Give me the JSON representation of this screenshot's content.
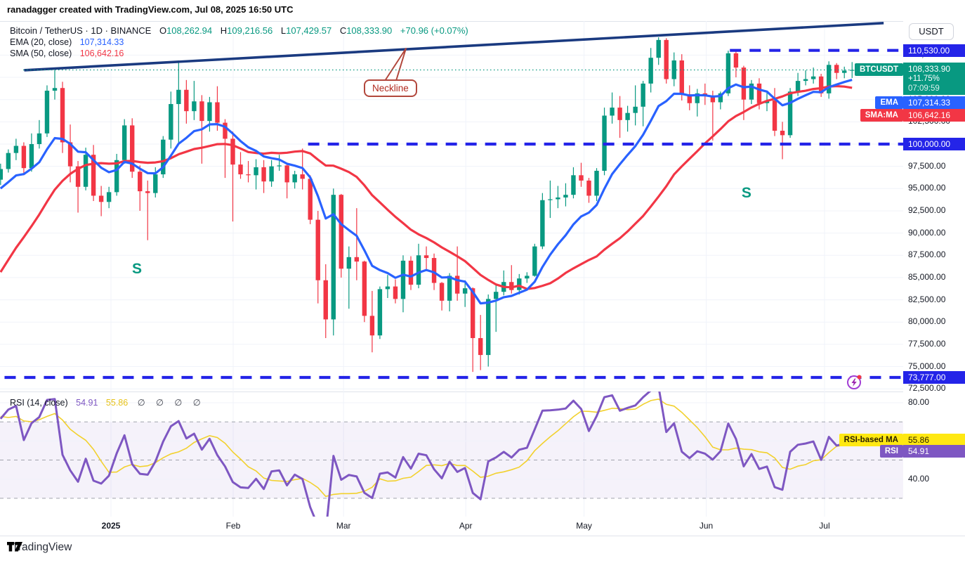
{
  "header": {
    "title": "ranadagger created with TradingView.com, Jul 08, 2025 16:50 UTC"
  },
  "legend": {
    "symbol": "Bitcoin / TetherUS · 1D · BINANCE",
    "o_label": "O",
    "o": "108,262.94",
    "h_label": "H",
    "h": "109,216.56",
    "l_label": "L",
    "l": "107,429.57",
    "c_label": "C",
    "c": "108,333.90",
    "change": "+70.96 (+0.07%)",
    "ema_label": "EMA (20, close)",
    "ema_value": "107,314.33",
    "sma_label": "SMA (50, close)",
    "sma_value": "106,642.16"
  },
  "rsi_legend": {
    "label": "RSI (14, close)",
    "value": "54.91",
    "ma_value": "55.86",
    "empties": "∅ ∅ ∅ ∅"
  },
  "axis": {
    "currency": "USDT",
    "level_top": "110,530.00",
    "level_mid": "100,000.00",
    "level_low": "73,777.00",
    "symbol_badge": {
      "label": "BTCUSDT",
      "price": "108,333.90",
      "change_pct": "+11.75%",
      "countdown": "07:09:59"
    },
    "ema_badge": {
      "label": "EMA",
      "value": "107,314.33"
    },
    "sma_badge": {
      "label": "SMA:MA",
      "value": "106,642.16"
    },
    "rsi_ma_badge": {
      "label": "RSI-based MA",
      "value": "55.86"
    },
    "rsi_badge": {
      "label": "RSI",
      "value": "54.91"
    }
  },
  "annotations": {
    "neckline_label": "Neckline",
    "s_label": "S"
  },
  "footer": {
    "brand": "TradingView"
  },
  "colors": {
    "up": "#089981",
    "down": "#f23645",
    "ema": "#2962ff",
    "sma": "#f23645",
    "level_blue": "#2424e8",
    "trendline": "#1a3a80",
    "last_price": "#089981",
    "rsi": "#7e57c2",
    "rsi_ma": "#f2d12e",
    "rsi_band": "rgba(126,87,194,0.08)",
    "annotation_red": "#b2473c",
    "s_teal": "#089981",
    "grid": "#f0f3fa",
    "band_dash": "#9598a1"
  },
  "chart_data": {
    "type": "candlestick",
    "title": "Bitcoin / TetherUS · 1D · BINANCE",
    "symbol": "BTCUSDT",
    "exchange": "BINANCE",
    "interval": "1D",
    "last": {
      "open": 108262.94,
      "high": 109216.56,
      "low": 107429.57,
      "close": 108333.9,
      "change": "+70.96 (+0.07%)"
    },
    "last_price": 108333.9,
    "indicators": {
      "ema20": 107314.33,
      "sma50": 106642.16,
      "rsi14": 54.91,
      "rsi_based_ma": 55.86
    },
    "total_days": 216,
    "months": [
      {
        "label": "2025",
        "day": 28,
        "bold": true
      },
      {
        "label": "Feb",
        "day": 59
      },
      {
        "label": "Mar",
        "day": 87
      },
      {
        "label": "Apr",
        "day": 118
      },
      {
        "label": "May",
        "day": 148
      },
      {
        "label": "Jun",
        "day": 179
      },
      {
        "label": "Jul",
        "day": 209
      }
    ],
    "price_axis_ticks": [
      110000,
      107500,
      105000,
      102500,
      100000,
      97500,
      95000,
      92500,
      90000,
      87500,
      85000,
      82500,
      80000,
      77500,
      75000,
      72500
    ],
    "rsi_axis_ticks": [
      80,
      60,
      40
    ],
    "levels": [
      {
        "price": 110530,
        "from_day": 185,
        "style": "dashed"
      },
      {
        "price": 100000,
        "from_day": 78,
        "style": "dashed"
      },
      {
        "price": 73777,
        "from_day": 1,
        "style": "dashed",
        "alert": true,
        "alert_day": 216.5
      }
    ],
    "neckline": {
      "label": "Neckline",
      "from": {
        "day": 6,
        "price": 108300
      },
      "to": {
        "day": 224,
        "price": 113600
      }
    },
    "s_marks": [
      {
        "day": 34.6,
        "price": 85780
      },
      {
        "day": 189.2,
        "price": 94300
      }
    ],
    "ema": {
      "period_bars": 10
    },
    "sma": {
      "period_bars": 25
    },
    "rsi": {
      "period_bars": 7,
      "ma_period_bars": 7,
      "value": 54.91,
      "ma_value": 55.86,
      "upper": 70,
      "lower": 30,
      "middle": 50
    },
    "indicator_warmup_closes": [
      63000,
      64500,
      66000,
      67500,
      69000,
      68500,
      70000,
      72500,
      75500,
      78000,
      81000,
      88000,
      90500,
      92000,
      96000,
      97500,
      95500,
      96500,
      98000,
      96500,
      95500,
      97000,
      96200,
      95100,
      96400
    ],
    "candles": [
      [
        96000,
        97800,
        95400,
        97200
      ],
      [
        97200,
        99400,
        96800,
        99000
      ],
      [
        99000,
        100600,
        98200,
        99800
      ],
      [
        99800,
        100200,
        96500,
        97300
      ],
      [
        97300,
        101200,
        96900,
        100000
      ],
      [
        100000,
        102700,
        99500,
        101200
      ],
      [
        101200,
        106600,
        100800,
        106000
      ],
      [
        106000,
        108300,
        105000,
        106300
      ],
      [
        106300,
        107000,
        99000,
        100200
      ],
      [
        100200,
        102200,
        95700,
        97500
      ],
      [
        97500,
        98100,
        92300,
        95200
      ],
      [
        95200,
        99600,
        94800,
        98800
      ],
      [
        98800,
        99900,
        93600,
        94200
      ],
      [
        94200,
        95300,
        91900,
        93500
      ],
      [
        93500,
        95200,
        92800,
        94600
      ],
      [
        94600,
        98900,
        94200,
        98200
      ],
      [
        98200,
        102800,
        97800,
        102100
      ],
      [
        102100,
        102900,
        96200,
        96900
      ],
      [
        96900,
        97600,
        92500,
        94700
      ],
      [
        94700,
        95900,
        89200,
        94500
      ],
      [
        94500,
        97400,
        94000,
        96600
      ],
      [
        96600,
        100900,
        96200,
        100500
      ],
      [
        100500,
        105900,
        99500,
        104500
      ],
      [
        104500,
        109400,
        100100,
        106100
      ],
      [
        106100,
        107200,
        102300,
        103700
      ],
      [
        103700,
        107100,
        102700,
        104800
      ],
      [
        104800,
        105500,
        97800,
        102600
      ],
      [
        102600,
        105300,
        101400,
        104700
      ],
      [
        104700,
        106500,
        101500,
        102400
      ],
      [
        102400,
        102800,
        96200,
        100600
      ],
      [
        100600,
        101400,
        91300,
        97700
      ],
      [
        97700,
        99100,
        96100,
        96600
      ],
      [
        96600,
        98100,
        95700,
        96500
      ],
      [
        96500,
        98300,
        94900,
        97400
      ],
      [
        97400,
        98200,
        94500,
        95800
      ],
      [
        95800,
        98200,
        95200,
        97500
      ],
      [
        97500,
        98800,
        97000,
        97600
      ],
      [
        97600,
        97800,
        93900,
        95700
      ],
      [
        95700,
        97000,
        95000,
        96600
      ],
      [
        96600,
        99500,
        94900,
        96100
      ],
      [
        96100,
        96500,
        91000,
        91500
      ],
      [
        91500,
        92500,
        82100,
        84700
      ],
      [
        84700,
        86500,
        78200,
        80300
      ],
      [
        80300,
        95000,
        78500,
        94300
      ],
      [
        94300,
        94400,
        85000,
        86000
      ],
      [
        86000,
        88500,
        81500,
        87300
      ],
      [
        87300,
        92800,
        84700,
        86800
      ],
      [
        86800,
        86900,
        80000,
        80700
      ],
      [
        80700,
        83500,
        76600,
        78500
      ],
      [
        78500,
        84000,
        78100,
        83700
      ],
      [
        83700,
        85300,
        82700,
        84000
      ],
      [
        84000,
        84800,
        82100,
        82600
      ],
      [
        82600,
        87500,
        81100,
        86900
      ],
      [
        86900,
        87400,
        83600,
        84200
      ],
      [
        84200,
        88800,
        83800,
        87500
      ],
      [
        87500,
        88500,
        85900,
        87200
      ],
      [
        87200,
        87700,
        83600,
        84400
      ],
      [
        84400,
        84500,
        81300,
        82400
      ],
      [
        82400,
        85500,
        81200,
        85200
      ],
      [
        85200,
        88500,
        82400,
        83200
      ],
      [
        83200,
        84700,
        81700,
        83800
      ],
      [
        83800,
        83900,
        74400,
        78200
      ],
      [
        78200,
        80800,
        74600,
        76300
      ],
      [
        76300,
        83100,
        75000,
        82600
      ],
      [
        82600,
        84200,
        78900,
        83400
      ],
      [
        83400,
        85800,
        83000,
        84500
      ],
      [
        84500,
        86400,
        83200,
        83600
      ],
      [
        83600,
        85400,
        83100,
        84900
      ],
      [
        84900,
        85600,
        84400,
        85200
      ],
      [
        85200,
        88800,
        85100,
        88500
      ],
      [
        88500,
        94500,
        88200,
        93700
      ],
      [
        93700,
        95900,
        91700,
        93800
      ],
      [
        93800,
        95300,
        92800,
        94000
      ],
      [
        94000,
        95600,
        93000,
        94300
      ],
      [
        94300,
        97400,
        93900,
        96500
      ],
      [
        96500,
        97900,
        95200,
        95900
      ],
      [
        95900,
        96200,
        93400,
        94200
      ],
      [
        94200,
        97300,
        93600,
        97000
      ],
      [
        97000,
        104100,
        96500,
        103200
      ],
      [
        103200,
        105800,
        102300,
        104100
      ],
      [
        104100,
        105400,
        100700,
        102700
      ],
      [
        102700,
        104300,
        101400,
        103500
      ],
      [
        103500,
        106600,
        102100,
        104200
      ],
      [
        104200,
        107100,
        102000,
        106800
      ],
      [
        106800,
        110800,
        105800,
        109700
      ],
      [
        109700,
        112000,
        108900,
        111700
      ],
      [
        111700,
        111900,
        106800,
        107300
      ],
      [
        107300,
        110300,
        106500,
        109400
      ],
      [
        109400,
        110100,
        104900,
        105600
      ],
      [
        105600,
        106600,
        103800,
        104600
      ],
      [
        104600,
        106200,
        103100,
        105700
      ],
      [
        105700,
        106800,
        104400,
        105400
      ],
      [
        105400,
        106000,
        100400,
        104700
      ],
      [
        104700,
        105900,
        103900,
        105700
      ],
      [
        105700,
        110500,
        105400,
        110200
      ],
      [
        110200,
        110400,
        107500,
        108600
      ],
      [
        108600,
        108800,
        102700,
        105000
      ],
      [
        105000,
        107200,
        104500,
        106800
      ],
      [
        106800,
        107400,
        103900,
        104600
      ],
      [
        104600,
        105800,
        103700,
        104900
      ],
      [
        104900,
        106300,
        100900,
        101500
      ],
      [
        101500,
        102500,
        98300,
        101000
      ],
      [
        101000,
        106300,
        100700,
        105900
      ],
      [
        105900,
        108000,
        105400,
        107100
      ],
      [
        107100,
        108300,
        106600,
        107300
      ],
      [
        107300,
        108600,
        106800,
        107600
      ],
      [
        107600,
        107900,
        105300,
        105700
      ],
      [
        105700,
        109300,
        105100,
        108900
      ],
      [
        108900,
        109100,
        107300,
        108000
      ],
      [
        108000,
        108700,
        107400,
        108260
      ],
      [
        108262.94,
        109216.56,
        107429.57,
        108333.9
      ]
    ]
  }
}
